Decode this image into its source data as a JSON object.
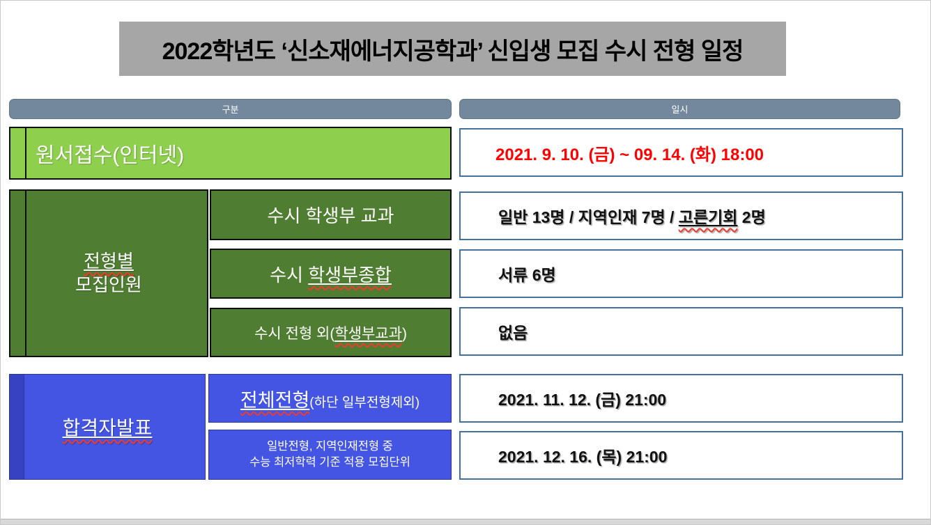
{
  "title": "2022학년도 ‘신소재에너지공학과’ 신입생 모집 수시 전형 일정",
  "columns": {
    "category": "구분",
    "datetime": "일시"
  },
  "application": {
    "label": "원서접수(인터넷)",
    "value": "2021. 9. 10. (금) ~ 09. 14. (화) 18:00"
  },
  "quota": {
    "group_line1": "전형별",
    "group_line2": "모집인원",
    "rows": [
      {
        "label_prefix": "수시 학생부 교과",
        "label_underlined": "",
        "label_suffix": "",
        "value_prefix": "일반 13명 / 지역인재 7명 / ",
        "value_underlined": "고른기회",
        "value_suffix": " 2명"
      },
      {
        "label_prefix": "수시 ",
        "label_underlined": "학생부종합",
        "label_suffix": "",
        "value_prefix": "서류 6명",
        "value_underlined": "",
        "value_suffix": ""
      },
      {
        "label_prefix": "수시 전형 외(",
        "label_underlined": "학생부교과",
        "label_suffix": ")",
        "value_prefix": "없음",
        "value_underlined": "",
        "value_suffix": ""
      }
    ]
  },
  "announcement": {
    "group_label": "합격자발표",
    "rows": [
      {
        "label_main": "전체전형",
        "label_note": "(하단 일부전형제외)",
        "value": "2021. 11. 12. (금) 21:00"
      },
      {
        "label_line1": "일반전형, 지역인재전형 중",
        "label_line2": "수능 최저학력 기준 적용 모집단위",
        "value": "2021. 12. 16. (목) 21:00"
      }
    ]
  },
  "colors": {
    "title_bg": "#a6a6a6",
    "header_pill": "#74889d",
    "light_green": "#8ed04e",
    "dark_green": "#4f7d31",
    "blue": "#4355e2",
    "blue_strip": "#3642c2",
    "value_box_border": "#41719c",
    "deadline_red": "#ff0000",
    "squiggle_red": "#f03a2e"
  }
}
